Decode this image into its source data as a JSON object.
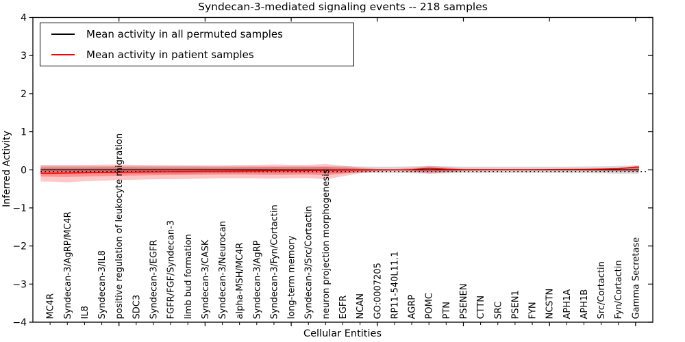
{
  "figure": {
    "background": "#ffffff",
    "frame_color": "#000000"
  },
  "legend": {
    "items": [
      {
        "label": "Mean activity in all permuted samples",
        "color": "#000000"
      },
      {
        "label": "Mean activity in patient samples",
        "color": "#ff0000"
      }
    ]
  },
  "chart_data": {
    "type": "line",
    "title": "Syndecan-3-mediated signaling events -- 218 samples",
    "xlabel": "Cellular Entities",
    "ylabel": "Inferred Activity",
    "ylim": [
      -4,
      4
    ],
    "yticks": [
      -4,
      -3,
      -2,
      -1,
      0,
      1,
      2,
      3,
      4
    ],
    "xlim": [
      0,
      36
    ],
    "xticks_major": [
      5,
      10,
      15,
      20,
      25,
      30,
      35
    ],
    "grid": false,
    "legend_position": "upper-left",
    "categories": [
      "MC4R",
      "Syndecan-3/AgRP/MC4R",
      "IL8",
      "Syndecan-3/IL8",
      "positive regulation of leukocyte migration",
      "SDC3",
      "Syndecan-3/EGFR",
      "FGFR/FGF/Syndecan-3",
      "limb bud formation",
      "Syndecan-3/CASK",
      "Syndecan-3/Neurocan",
      "alpha-MSH/MC4R",
      "Syndecan-3/AgRP",
      "Syndecan-3/Fyn/Cortactin",
      "long-term memory",
      "Syndecan-3/Src/Cortactin",
      "neuron projection morphogenesis",
      "EGFR",
      "NCAN",
      "GO:0007205",
      "RP11-540L11.1",
      "AGRP",
      "POMC",
      "PTN",
      "PSENEN",
      "CTTN",
      "SRC",
      "PSEN1",
      "FYN",
      "NCSTN",
      "APH1A",
      "APH1B",
      "Src/Cortactin",
      "Fyn/Cortactin",
      "Gamma Secretase"
    ],
    "series": [
      {
        "name": "Mean activity in all permuted samples",
        "color": "#000000",
        "style": "solid",
        "width": 1.3,
        "values": [
          0,
          0,
          0,
          0,
          0,
          0,
          0,
          0,
          0,
          0,
          0,
          0,
          0,
          0,
          0,
          0,
          0,
          0,
          0,
          0,
          0,
          0,
          0,
          0,
          0,
          0,
          0,
          0,
          0,
          0,
          0,
          0,
          0,
          0,
          0
        ]
      },
      {
        "name": "Mean activity in patient samples",
        "color": "#ff0000",
        "style": "solid",
        "width": 1.6,
        "values": [
          -0.09,
          -0.085,
          -0.075,
          -0.07,
          -0.065,
          -0.06,
          -0.055,
          -0.05,
          -0.045,
          -0.04,
          -0.038,
          -0.035,
          -0.03,
          -0.025,
          -0.02,
          -0.018,
          -0.015,
          -0.01,
          -0.008,
          -0.005,
          -0.003,
          0.005,
          0.04,
          0.015,
          0.004,
          0.003,
          0.003,
          0.003,
          0.004,
          0.008,
          0.01,
          0.012,
          0.018,
          0.03,
          0.07
        ]
      },
      {
        "name": "",
        "color": "#000000",
        "style": "dotted",
        "width": 1.5,
        "values": [
          -0.045,
          -0.045,
          -0.045,
          -0.045,
          -0.045,
          -0.045,
          -0.045,
          -0.045,
          -0.045,
          -0.045,
          -0.045,
          -0.045,
          -0.045,
          -0.045,
          -0.045,
          -0.045,
          -0.045,
          -0.045,
          -0.045,
          -0.045,
          -0.045,
          -0.045,
          -0.045,
          -0.045,
          -0.045,
          -0.045,
          -0.045,
          -0.045,
          -0.045,
          -0.045,
          -0.045,
          -0.045,
          -0.045,
          -0.045,
          -0.045
        ]
      }
    ],
    "bands": [
      {
        "name": "permuted-spread",
        "color": "rgba(0,0,0,0.16)",
        "upper": [
          0.1,
          0.1,
          0.1,
          0.1,
          0.1,
          0.1,
          0.1,
          0.1,
          0.1,
          0.09,
          0.09,
          0.09,
          0.09,
          0.09,
          0.09,
          0.09,
          0.09,
          0.09,
          0.085,
          0.08,
          0.08,
          0.09,
          0.1,
          0.09,
          0.08,
          0.08,
          0.08,
          0.08,
          0.08,
          0.08,
          0.08,
          0.085,
          0.09,
          0.1,
          0.12
        ],
        "lower": [
          -0.1,
          -0.1,
          -0.1,
          -0.1,
          -0.1,
          -0.1,
          -0.1,
          -0.1,
          -0.1,
          -0.09,
          -0.09,
          -0.09,
          -0.09,
          -0.09,
          -0.09,
          -0.09,
          -0.09,
          -0.09,
          -0.085,
          -0.08,
          -0.08,
          -0.09,
          -0.1,
          -0.09,
          -0.08,
          -0.08,
          -0.08,
          -0.08,
          -0.08,
          -0.08,
          -0.08,
          -0.085,
          -0.09,
          -0.1,
          -0.1
        ]
      },
      {
        "name": "patient-spread-outer",
        "color": "rgba(255,0,0,0.22)",
        "upper": [
          0.13,
          0.13,
          0.13,
          0.135,
          0.14,
          0.13,
          0.125,
          0.12,
          0.12,
          0.12,
          0.12,
          0.125,
          0.13,
          0.14,
          0.13,
          0.13,
          0.15,
          0.11,
          0.06,
          0.025,
          0.02,
          0.05,
          0.1,
          0.07,
          0.03,
          0.025,
          0.02,
          0.02,
          0.02,
          0.02,
          0.025,
          0.025,
          0.03,
          0.04,
          0.1
        ],
        "lower": [
          -0.31,
          -0.33,
          -0.3,
          -0.285,
          -0.27,
          -0.26,
          -0.25,
          -0.245,
          -0.24,
          -0.23,
          -0.22,
          -0.22,
          -0.225,
          -0.23,
          -0.22,
          -0.215,
          -0.25,
          -0.17,
          -0.09,
          -0.035,
          -0.025,
          -0.055,
          -0.1,
          -0.07,
          -0.035,
          -0.03,
          -0.025,
          -0.025,
          -0.025,
          -0.025,
          -0.025,
          -0.03,
          -0.035,
          -0.045,
          -0.05
        ]
      },
      {
        "name": "patient-spread-inner",
        "color": "rgba(255,0,0,0.27)",
        "upper": [
          0.06,
          0.06,
          0.06,
          0.065,
          0.07,
          0.065,
          0.06,
          0.06,
          0.06,
          0.06,
          0.06,
          0.065,
          0.07,
          0.075,
          0.07,
          0.07,
          0.08,
          0.055,
          0.03,
          0.012,
          0.01,
          0.025,
          0.055,
          0.035,
          0.015,
          0.012,
          0.01,
          0.01,
          0.01,
          0.01,
          0.012,
          0.012,
          0.015,
          0.02,
          0.085
        ],
        "lower": [
          -0.18,
          -0.19,
          -0.175,
          -0.165,
          -0.155,
          -0.15,
          -0.145,
          -0.14,
          -0.135,
          -0.13,
          -0.125,
          -0.125,
          -0.13,
          -0.135,
          -0.13,
          -0.125,
          -0.145,
          -0.1,
          -0.05,
          -0.02,
          -0.012,
          -0.03,
          -0.055,
          -0.04,
          -0.02,
          -0.015,
          -0.012,
          -0.012,
          -0.012,
          -0.012,
          -0.012,
          -0.015,
          -0.02,
          -0.025,
          -0.03
        ]
      }
    ]
  }
}
